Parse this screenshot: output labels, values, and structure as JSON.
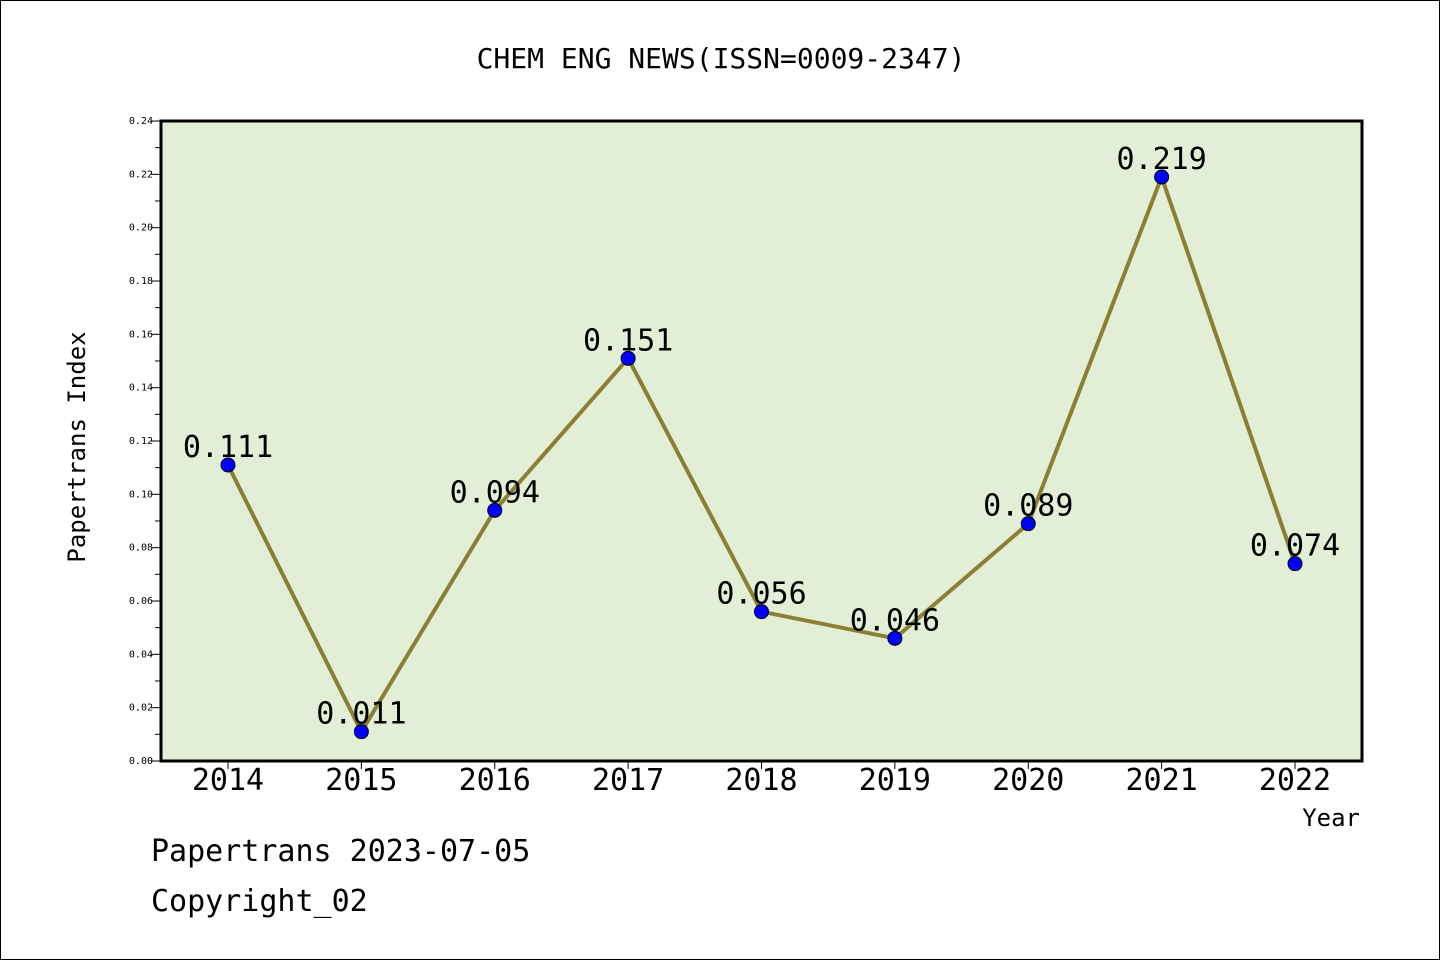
{
  "chart_data": {
    "type": "line",
    "title": "CHEM ENG NEWS(ISSN=0009-2347)",
    "xlabel": "Year",
    "ylabel": "Papertrans Index",
    "categories": [
      "2014",
      "2015",
      "2016",
      "2017",
      "2018",
      "2019",
      "2020",
      "2021",
      "2022"
    ],
    "series": [
      {
        "values": [
          0.111,
          0.011,
          0.094,
          0.151,
          0.056,
          0.046,
          0.089,
          0.219,
          0.074
        ]
      }
    ],
    "data_labels": [
      "0.111",
      "0.011",
      "0.094",
      "0.151",
      "0.056",
      "0.046",
      "0.089",
      "0.219",
      "0.074"
    ],
    "ylim": [
      0,
      0.24
    ],
    "y_ticks": [
      "0.00",
      "0.02",
      "0.04",
      "0.06",
      "0.08",
      "0.10",
      "0.12",
      "0.14",
      "0.16",
      "0.18",
      "0.20",
      "0.22",
      "0.24"
    ],
    "grid": false,
    "colors": {
      "plot_background": "#e2efd6",
      "line": "#8c7e32",
      "marker": "#0000ff"
    }
  },
  "footer": {
    "date_line": "Papertrans 2023-07-05",
    "copyright": "Copyright_02"
  }
}
